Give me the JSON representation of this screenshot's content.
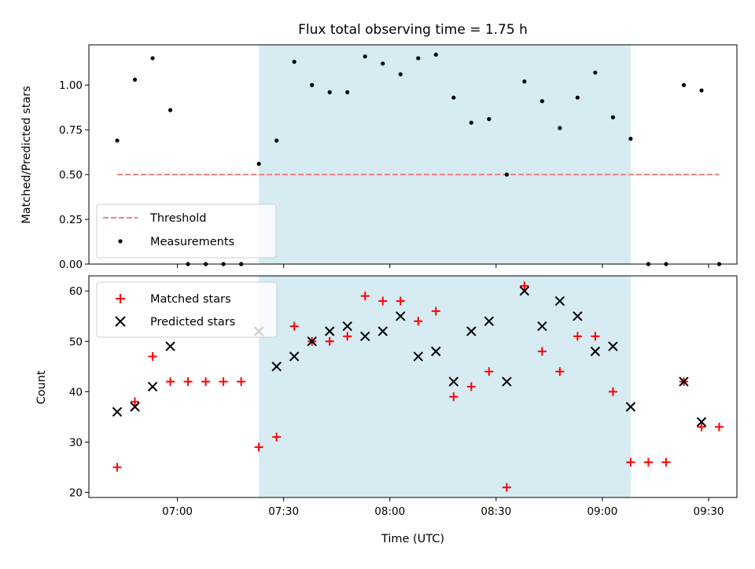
{
  "chart_data": [
    {
      "type": "scatter",
      "title": "Flux total observing time = 1.75 h",
      "xlabel": "",
      "ylabel": "Matched/Predicted stars",
      "ylim": [
        0,
        1.225
      ],
      "yticks": [
        "0.00",
        "0.25",
        "0.50",
        "0.75",
        "1.00"
      ],
      "yticks_values": [
        0,
        0.25,
        0.5,
        0.75,
        1.0
      ],
      "shaded_interval": [
        "07:23",
        "09:08"
      ],
      "shade_color": "#add8e6",
      "threshold": {
        "name": "Threshold",
        "value": 0.5,
        "x_range": [
          "06:43",
          "09:33"
        ],
        "color": "#f08080"
      },
      "series": [
        {
          "name": "Measurements",
          "color": "#000000",
          "marker": "dot",
          "x": [
            "06:43",
            "06:48",
            "06:53",
            "06:58",
            "07:03",
            "07:08",
            "07:13",
            "07:18",
            "07:23",
            "07:28",
            "07:33",
            "07:38",
            "07:43",
            "07:48",
            "07:53",
            "07:58",
            "08:03",
            "08:08",
            "08:13",
            "08:18",
            "08:23",
            "08:28",
            "08:33",
            "08:38",
            "08:43",
            "08:48",
            "08:53",
            "08:58",
            "09:03",
            "09:08",
            "09:13",
            "09:18",
            "09:23",
            "09:28",
            "09:33"
          ],
          "y": [
            0.69,
            1.03,
            1.15,
            0.86,
            0.0,
            0.0,
            0.0,
            0.0,
            0.56,
            0.69,
            1.13,
            1.0,
            0.96,
            0.96,
            1.16,
            1.12,
            1.06,
            1.15,
            1.17,
            0.93,
            0.79,
            0.81,
            0.5,
            1.02,
            0.91,
            0.76,
            0.93,
            1.07,
            0.82,
            0.7,
            0.0,
            0.0,
            1.0,
            0.97,
            0.0
          ]
        }
      ],
      "legend_placement": "lower-left"
    },
    {
      "type": "scatter",
      "title": "",
      "xlabel": "Time (UTC)",
      "ylabel": "Count",
      "ylim": [
        19,
        63
      ],
      "yticks": [
        "20",
        "30",
        "40",
        "50",
        "60"
      ],
      "yticks_values": [
        20,
        30,
        40,
        50,
        60
      ],
      "xticks": [
        "07:00",
        "07:30",
        "08:00",
        "08:30",
        "09:00",
        "09:30"
      ],
      "xlim": [
        "06:35",
        "09:38"
      ],
      "shaded_interval": [
        "07:23",
        "09:08"
      ],
      "shade_color": "#add8e6",
      "series": [
        {
          "name": "Matched stars",
          "color": "#ff0000",
          "marker": "plus",
          "x": [
            "06:43",
            "06:48",
            "06:53",
            "06:58",
            "07:03",
            "07:08",
            "07:13",
            "07:18",
            "07:23",
            "07:28",
            "07:33",
            "07:38",
            "07:43",
            "07:48",
            "07:53",
            "07:58",
            "08:03",
            "08:08",
            "08:13",
            "08:18",
            "08:23",
            "08:28",
            "08:33",
            "08:38",
            "08:43",
            "08:48",
            "08:53",
            "08:58",
            "09:03",
            "09:08",
            "09:13",
            "09:18",
            "09:23",
            "09:28",
            "09:33"
          ],
          "y": [
            25,
            38,
            47,
            42,
            42,
            42,
            42,
            42,
            29,
            31,
            53,
            50,
            50,
            51,
            59,
            58,
            58,
            54,
            56,
            39,
            41,
            44,
            21,
            61,
            48,
            44,
            51,
            51,
            40,
            26,
            26,
            26,
            42,
            33,
            33
          ]
        },
        {
          "name": "Predicted stars",
          "color": "#000000",
          "marker": "x",
          "x": [
            "06:43",
            "06:48",
            "06:53",
            "06:58",
            "07:23",
            "07:28",
            "07:33",
            "07:38",
            "07:43",
            "07:48",
            "07:53",
            "07:58",
            "08:03",
            "08:08",
            "08:13",
            "08:18",
            "08:23",
            "08:28",
            "08:33",
            "08:38",
            "08:43",
            "08:48",
            "08:53",
            "08:58",
            "09:03",
            "09:08",
            "09:23",
            "09:28"
          ],
          "y": [
            36,
            37,
            41,
            49,
            52,
            45,
            47,
            50,
            52,
            53,
            51,
            52,
            55,
            47,
            48,
            42,
            52,
            54,
            42,
            60,
            53,
            58,
            55,
            48,
            49,
            37,
            42,
            34
          ]
        }
      ],
      "legend_placement": "upper-left"
    }
  ]
}
